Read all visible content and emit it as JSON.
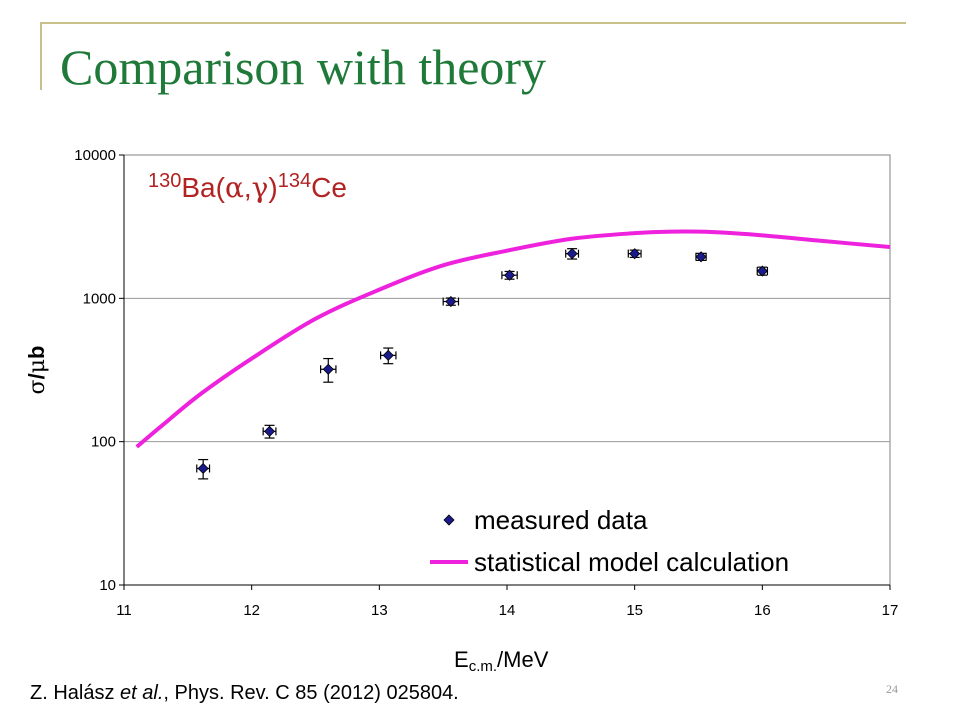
{
  "slide": {
    "title": "Comparison with theory",
    "citation_author": "Z. Halász",
    "citation_etal": "et al.",
    "citation_rest": ", Phys. Rev. C 85 (2012) 025804.",
    "page_number": "24"
  },
  "colors": {
    "title": "#1f7a3a",
    "frame": "#c9c08a",
    "data_marker": "#1a1a8c",
    "model_curve": "#ee22dd",
    "reaction_label": "#b22222"
  },
  "chart_data": {
    "type": "scatter",
    "reaction_label": {
      "mass_target": "130",
      "target": "Ba(",
      "alpha": "α",
      "comma": ",",
      "gamma": "γ",
      "close": ")",
      "mass_product": "134",
      "product": "Ce"
    },
    "xlabel": {
      "main": "E",
      "sub": "c.m.",
      "unit": "/MeV"
    },
    "ylabel": {
      "sigma": "σ",
      "slash": "/",
      "mu": "μ",
      "b": "b"
    },
    "xlim": [
      11,
      17
    ],
    "ylim": [
      10,
      10000
    ],
    "y_scale": "log",
    "x_ticks": [
      "11",
      "12",
      "13",
      "14",
      "15",
      "16",
      "17"
    ],
    "y_ticks": [
      "10",
      "100",
      "1000",
      "10000"
    ],
    "y_tick_values": [
      10,
      100,
      1000,
      10000
    ],
    "grid": "horizontal",
    "legend_position": "bottom-right",
    "series": [
      {
        "name": "measured data",
        "kind": "markers",
        "x": [
          11.62,
          12.14,
          12.6,
          13.07,
          13.56,
          14.02,
          14.51,
          15.0,
          15.52,
          16.0
        ],
        "y": [
          65,
          118,
          320,
          400,
          950,
          1450,
          2050,
          2050,
          1950,
          1550
        ],
        "yerr": [
          10,
          12,
          60,
          50,
          55,
          90,
          170,
          120,
          110,
          100
        ],
        "xerr": [
          0.05,
          0.05,
          0.06,
          0.06,
          0.06,
          0.06,
          0.05,
          0.05,
          0.04,
          0.04
        ]
      },
      {
        "name": "statistical model calculation",
        "kind": "line",
        "x": [
          11.1,
          11.3,
          11.6,
          12.0,
          12.5,
          13.0,
          13.5,
          14.0,
          14.5,
          15.0,
          15.3,
          15.6,
          16.0,
          16.5,
          17.0
        ],
        "y": [
          92,
          130,
          215,
          380,
          720,
          1150,
          1700,
          2150,
          2600,
          2850,
          2920,
          2900,
          2750,
          2500,
          2280
        ]
      }
    ]
  }
}
